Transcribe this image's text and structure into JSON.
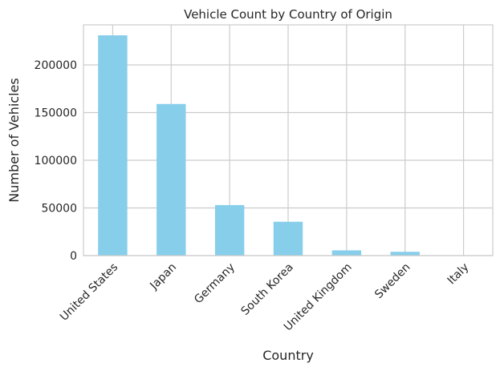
{
  "chart_data": {
    "type": "bar",
    "title": "Vehicle Count by Country of Origin",
    "xlabel": "Country",
    "ylabel": "Number of Vehicles",
    "categories": [
      "United States",
      "Japan",
      "Germany",
      "South Korea",
      "United Kingdom",
      "Sweden",
      "Italy"
    ],
    "values": [
      231000,
      159000,
      53000,
      35500,
      5500,
      4000,
      200
    ],
    "yticks": [
      0,
      50000,
      100000,
      150000,
      200000
    ],
    "ylim": [
      0,
      242000
    ],
    "grid": true,
    "bar_color": "#87ceeb",
    "grid_color": "#cccccc"
  }
}
